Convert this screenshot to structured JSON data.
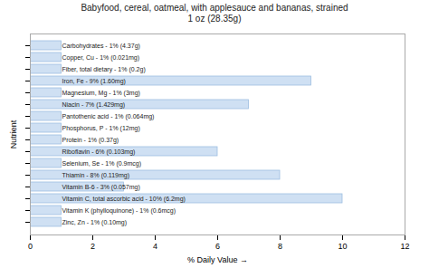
{
  "chart_data": {
    "type": "bar",
    "orientation": "horizontal",
    "title": "Babyfood, cereal, oatmeal, with applesauce and bananas, strained",
    "subtitle": "1 oz (28.35g)",
    "x_label": "% Daily Value",
    "y_label": "Nutrient",
    "categories": [
      "Carbohydrates - 1% (4.37g)",
      "Copper, Cu - 1% (0.021mg)",
      "Fiber, total dietary - 1% (0.2g)",
      "Iron, Fe - 9% (1.60mg)",
      "Magnesium, Mg - 1% (3mg)",
      "Niacin - 7% (1.429mg)",
      "Pantothenic acid - 1% (0.064mg)",
      "Phosphorus, P - 1% (12mg)",
      "Protein - 1% (0.37g)",
      "Riboflavin - 6% (0.103mg)",
      "Selenium, Se - 1% (0.9mcg)",
      "Thiamin - 8% (0.119mg)",
      "Vitamin B-6 - 3% (0.057mg)",
      "Vitamin C, total ascorbic acid - 10% (6.2mg)",
      "Vitamin K (phylloquinone) - 1% (0.6mcg)",
      "Zinc, Zn - 1% (0.10mg)"
    ],
    "values": [
      1,
      1,
      1,
      9,
      1,
      7,
      1,
      1,
      1,
      6,
      1,
      8,
      3,
      10,
      1,
      1
    ],
    "color": "#cfe0f3",
    "xlim": [
      0,
      12
    ],
    "xticks": [
      0,
      2,
      4,
      6,
      8,
      10,
      12
    ],
    "grid": false,
    "tick_labels": "x"
  }
}
